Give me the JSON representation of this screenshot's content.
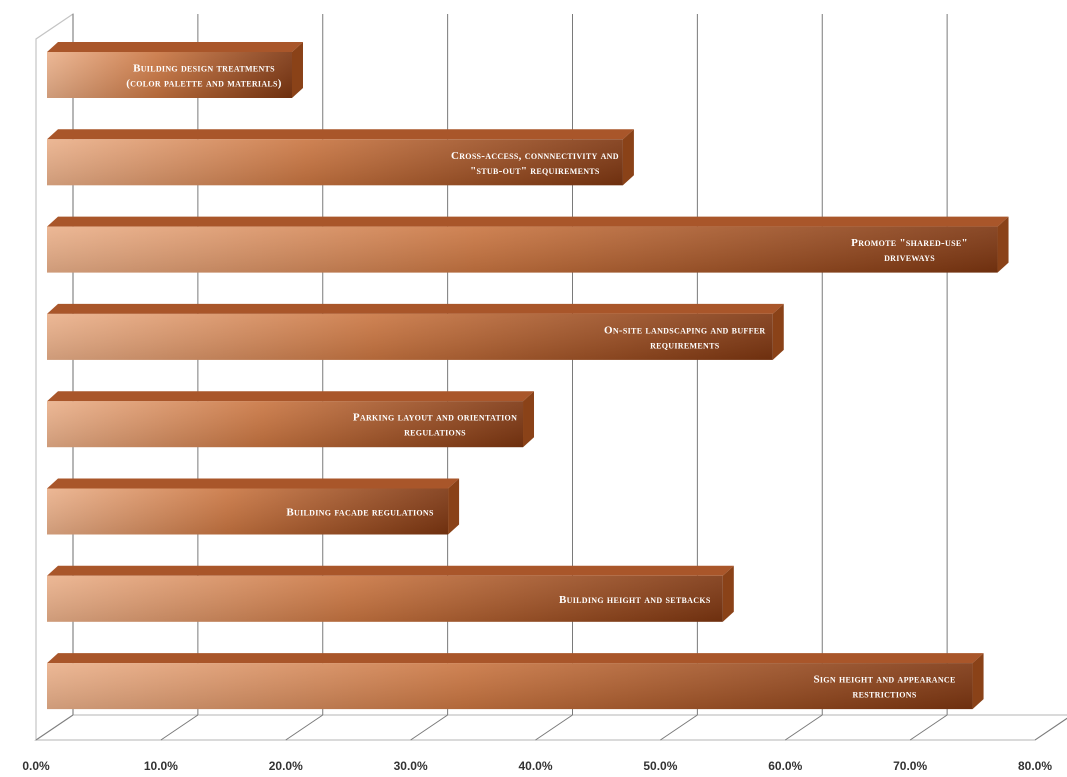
{
  "chart_data": {
    "type": "bar",
    "orientation": "horizontal",
    "style": "3d",
    "title": "",
    "xlabel": "",
    "ylabel": "",
    "xlim": [
      0,
      80
    ],
    "grid": true,
    "legend": "none",
    "tick_labels": [
      "0.0%",
      "10.0%",
      "20.0%",
      "30.0%",
      "40.0%",
      "50.0%",
      "60.0%",
      "70.0%",
      "80.0%"
    ],
    "categories": [
      [
        "Building design treatments",
        "(color palette and materials)"
      ],
      [
        "Cross-access, connnectivity and",
        "\"stub-out\" requirements"
      ],
      [
        "Promote \"shared-use\"",
        "driveways"
      ],
      [
        "On-site landscaping and buffer",
        "requirements"
      ],
      [
        "Parking layout and orientation",
        "regulations"
      ],
      [
        "Building facade regulations"
      ],
      [
        "Building height and setbacks"
      ],
      [
        "Sign height and appearance",
        "restrictions"
      ]
    ],
    "values": [
      20.5,
      47.0,
      77.0,
      59.0,
      39.0,
      33.0,
      55.0,
      75.0
    ],
    "colors": {
      "bar_light": "#eab08a",
      "bar_mid": "#c8733f",
      "bar_dark": "#7c3510",
      "bar_top": "#a9562a",
      "bar_side": "#8a4218",
      "grid": "#7a7a7a",
      "wall": "#c4c4c4"
    }
  }
}
